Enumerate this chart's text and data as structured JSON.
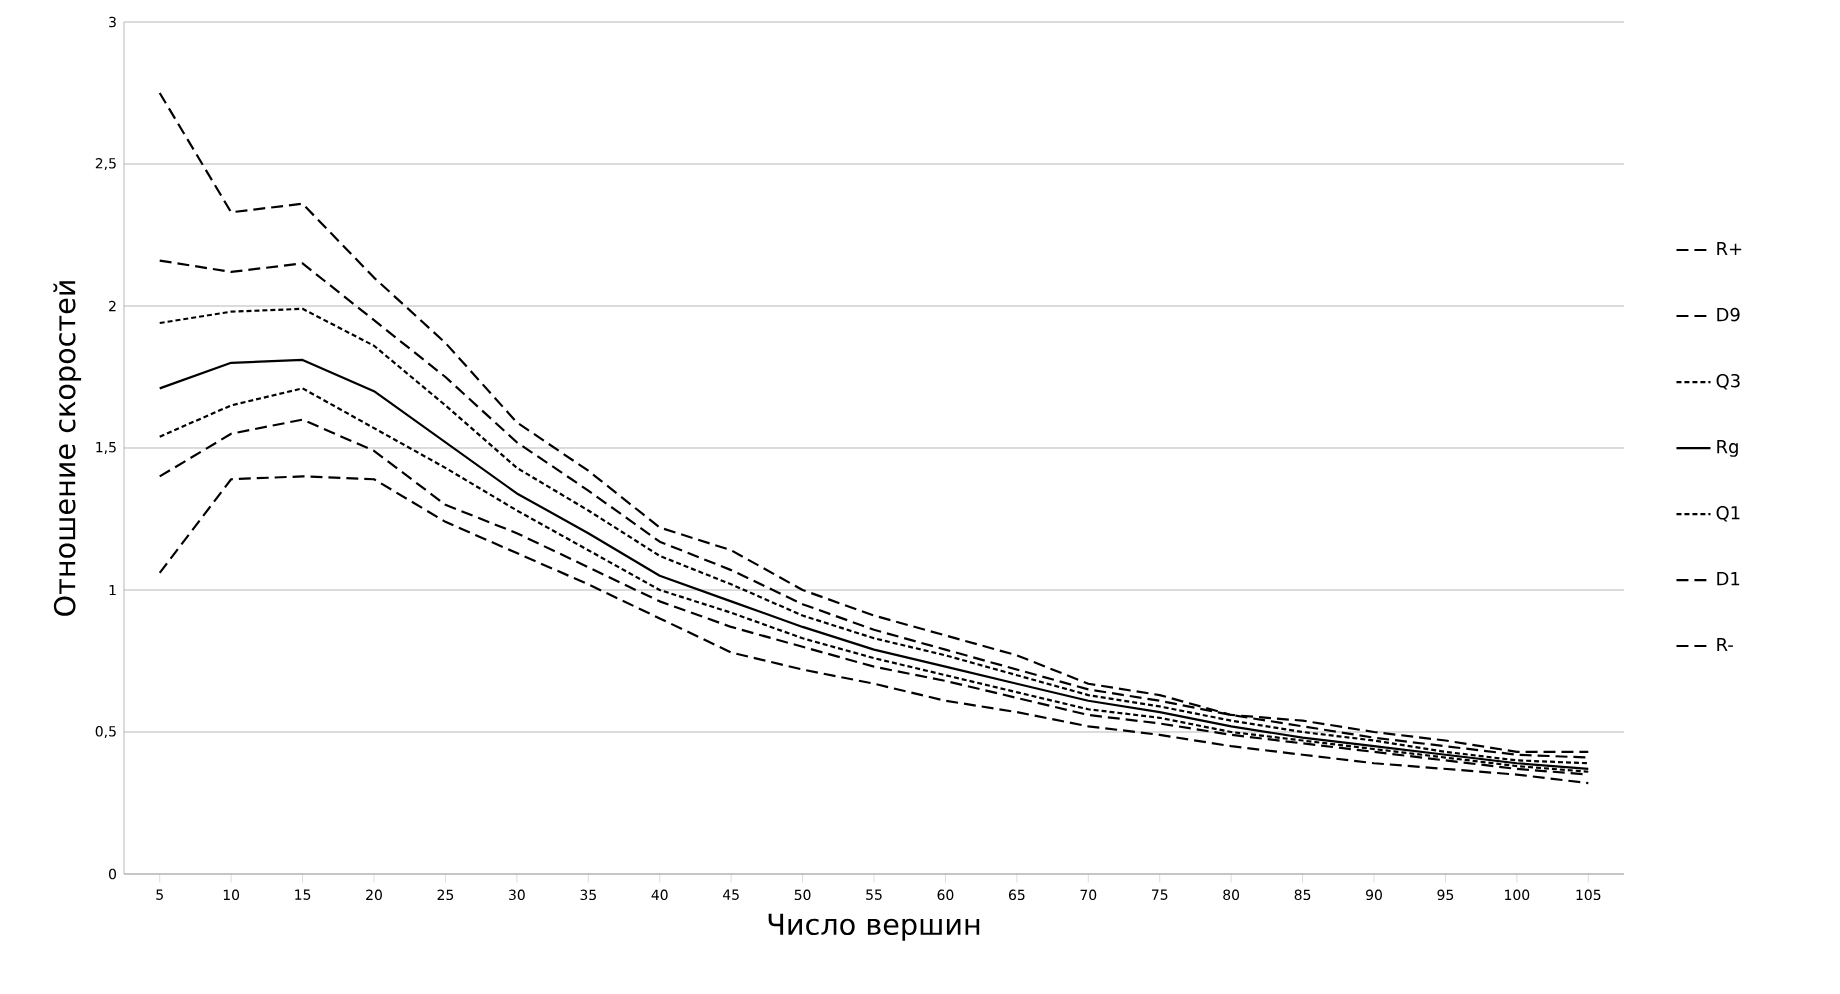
{
  "chart_data": {
    "type": "line",
    "xlabel": "Число вершин",
    "ylabel": "Отношение скоростей",
    "categories": [
      "5",
      "10",
      "15",
      "20",
      "25",
      "30",
      "35",
      "40",
      "45",
      "50",
      "55",
      "60",
      "65",
      "70",
      "75",
      "80",
      "85",
      "90",
      "95",
      "100",
      "105"
    ],
    "ylim": [
      0,
      3
    ],
    "yticks": [
      0,
      {
        "value": 0.5,
        "label": "0,5"
      },
      1,
      {
        "value": 1.5,
        "label": "1,5"
      },
      2,
      {
        "value": 2.5,
        "label": "2,5"
      },
      3
    ],
    "grid": "y",
    "legend": "right",
    "marker": "none",
    "series": [
      {
        "name": "R+",
        "color": "#000000",
        "line_style": "dashed",
        "values": [
          2.75,
          2.33,
          2.36,
          2.1,
          1.87,
          1.59,
          1.42,
          1.22,
          1.14,
          1.0,
          0.91,
          0.84,
          0.77,
          0.67,
          0.63,
          0.56,
          0.54,
          0.5,
          0.47,
          0.43,
          0.43
        ]
      },
      {
        "name": "D9",
        "color": "#000000",
        "line_style": "dashed",
        "values": [
          2.16,
          2.12,
          2.15,
          1.95,
          1.75,
          1.52,
          1.35,
          1.17,
          1.07,
          0.95,
          0.86,
          0.79,
          0.72,
          0.65,
          0.61,
          0.56,
          0.52,
          0.48,
          0.45,
          0.42,
          0.41
        ]
      },
      {
        "name": "Q3",
        "color": "#000000",
        "line_style": "dotted",
        "values": [
          1.94,
          1.98,
          1.99,
          1.86,
          1.65,
          1.43,
          1.28,
          1.12,
          1.02,
          0.91,
          0.83,
          0.77,
          0.7,
          0.63,
          0.59,
          0.54,
          0.5,
          0.47,
          0.43,
          0.4,
          0.39
        ]
      },
      {
        "name": "Rg",
        "color": "#000000",
        "line_style": "solid",
        "values": [
          1.71,
          1.8,
          1.81,
          1.7,
          1.52,
          1.34,
          1.2,
          1.05,
          0.96,
          0.87,
          0.79,
          0.73,
          0.67,
          0.61,
          0.57,
          0.52,
          0.48,
          0.45,
          0.42,
          0.39,
          0.37
        ]
      },
      {
        "name": "Q1",
        "color": "#000000",
        "line_style": "dotted",
        "values": [
          1.54,
          1.65,
          1.71,
          1.57,
          1.43,
          1.28,
          1.14,
          1.0,
          0.92,
          0.83,
          0.76,
          0.7,
          0.64,
          0.58,
          0.55,
          0.5,
          0.47,
          0.44,
          0.41,
          0.38,
          0.36
        ]
      },
      {
        "name": "D1",
        "color": "#000000",
        "line_style": "dashed",
        "values": [
          1.4,
          1.55,
          1.6,
          1.49,
          1.3,
          1.2,
          1.08,
          0.96,
          0.87,
          0.8,
          0.73,
          0.68,
          0.62,
          0.56,
          0.53,
          0.49,
          0.46,
          0.43,
          0.4,
          0.37,
          0.35
        ]
      },
      {
        "name": "R-",
        "color": "#000000",
        "line_style": "dashed",
        "values": [
          1.06,
          1.39,
          1.4,
          1.39,
          1.24,
          1.13,
          1.02,
          0.9,
          0.78,
          0.72,
          0.67,
          0.61,
          0.57,
          0.52,
          0.49,
          0.45,
          0.42,
          0.39,
          0.37,
          0.35,
          0.32
        ]
      }
    ]
  }
}
